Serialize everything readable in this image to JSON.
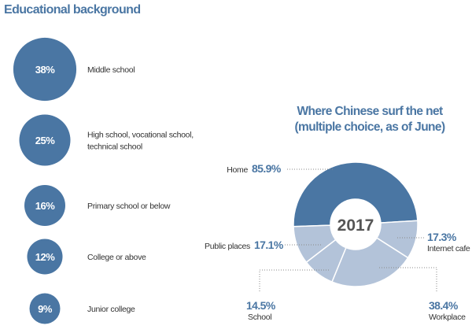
{
  "chart_data": [
    {
      "type": "bubble",
      "title": "Educational background",
      "categories": [
        "Middle school",
        "High school, vocational school, technical school",
        "Primary school or below",
        "College or above",
        "Junior college"
      ],
      "category_lines": [
        [
          "Middle school"
        ],
        [
          "High school, vocational school,",
          "technical school"
        ],
        [
          "Primary school or below"
        ],
        [
          "College or above"
        ],
        [
          "Junior college"
        ]
      ],
      "values": [
        38,
        25,
        16,
        12,
        9
      ],
      "value_labels": [
        "38%",
        "25%",
        "16%",
        "12%",
        "9%"
      ],
      "color": "#4a76a3"
    },
    {
      "type": "pie",
      "donut": true,
      "title_lines": [
        "Where Chinese surf the net",
        "(multiple choice, as of June)"
      ],
      "center_label": "2017",
      "categories": [
        "Home",
        "Internet cafe",
        "Workplace",
        "School",
        "Public places"
      ],
      "values": [
        85.9,
        17.3,
        38.4,
        14.5,
        17.1
      ],
      "value_labels": [
        "85.9%",
        "17.3%",
        "38.4%",
        "14.5%",
        "17.1%"
      ],
      "colors": [
        "#4a76a3",
        "#b3c3d9",
        "#b3c3d9",
        "#b3c3d9",
        "#b3c3d9"
      ]
    }
  ]
}
